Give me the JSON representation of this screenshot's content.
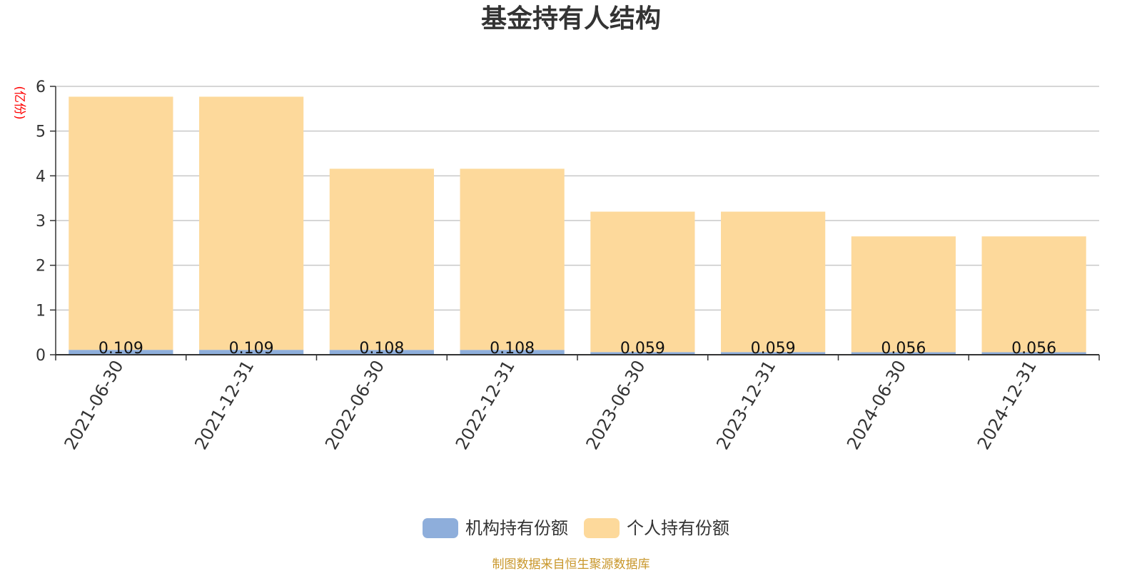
{
  "colors": {
    "institutional": "#8eaedb",
    "individual": "#fdd99b",
    "grid": "#c8c8c8",
    "axis": "#333333",
    "unit_label": "#ff0000",
    "source_text": "#c8962a"
  },
  "chart_data": {
    "type": "bar",
    "stacked": true,
    "title": "基金持有人结构",
    "ylabel": "(亿份)",
    "ylim": [
      0,
      6
    ],
    "yticks": [
      0,
      1,
      2,
      3,
      4,
      5,
      6
    ],
    "grid": true,
    "legend_position": "bottom-center",
    "categories": [
      "2021-06-30",
      "2021-12-31",
      "2022-06-30",
      "2022-12-31",
      "2023-06-30",
      "2023-12-31",
      "2024-06-30",
      "2024-12-31"
    ],
    "series": [
      {
        "name": "机构持有份额",
        "color": "#8eaedb",
        "values": [
          0.109,
          0.109,
          0.108,
          0.108,
          0.059,
          0.059,
          0.056,
          0.056
        ],
        "labels": [
          "0.109",
          "0.109",
          "0.108",
          "0.108",
          "0.059",
          "0.059",
          "0.056",
          "0.056"
        ]
      },
      {
        "name": "个人持有份额",
        "color": "#fdd99b",
        "values": [
          5.66,
          5.66,
          4.05,
          4.05,
          3.14,
          3.14,
          2.59,
          2.59
        ]
      }
    ]
  },
  "footer": {
    "source": "制图数据来自恒生聚源数据库"
  }
}
